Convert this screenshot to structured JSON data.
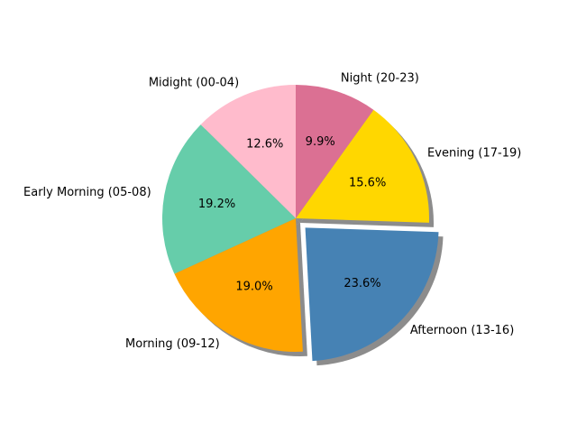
{
  "chart_data": {
    "type": "pie",
    "start_angle_deg": 90,
    "direction": "counterclockwise",
    "shadow": true,
    "slices": [
      {
        "label": "Midight (00-04)",
        "value": 12.6,
        "pct_label": "12.6%",
        "color": "#ffbbcc",
        "explode": false
      },
      {
        "label": "Early Morning (05-08)",
        "value": 19.2,
        "pct_label": "19.2%",
        "color": "#66cdaa",
        "explode": false
      },
      {
        "label": "Morning (09-12)",
        "value": 19.0,
        "pct_label": "19.0%",
        "color": "#ffa500",
        "explode": false
      },
      {
        "label": "Afternoon (13-16)",
        "value": 23.6,
        "pct_label": "23.6%",
        "color": "#4682b4",
        "explode": true
      },
      {
        "label": "Evening (17-19)",
        "value": 15.6,
        "pct_label": "15.6%",
        "color": "#ffd700",
        "explode": false
      },
      {
        "label": "Night (20-23)",
        "value": 9.9,
        "pct_label": "9.9%",
        "color": "#db7093",
        "explode": false
      }
    ]
  }
}
